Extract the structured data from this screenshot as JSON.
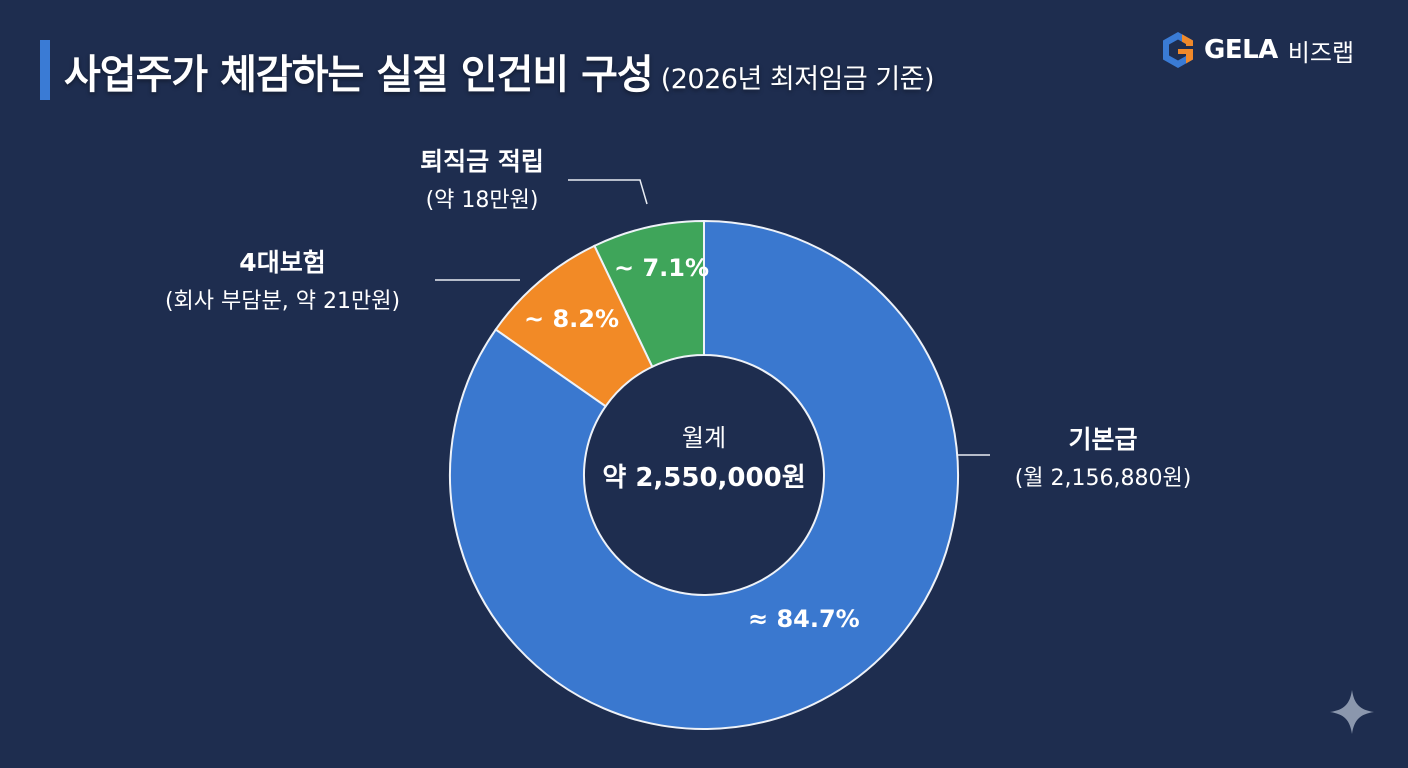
{
  "header": {
    "title": "사업주가 체감하는 실질 인건비 구성",
    "subtitle": "(2026년 최저임금 기준)"
  },
  "logo": {
    "icon": "hexagon-g-logo-icon",
    "brand": "GELA",
    "brand_ko": "비즈랩",
    "colors": {
      "blue": "#3a7bd5",
      "orange": "#f0892a"
    }
  },
  "chart_data": {
    "type": "pie",
    "subtype": "donut",
    "title": "사업주가 체감하는 실질 인건비 구성 (2026년 최저임금 기준)",
    "center_label": "월계",
    "center_value": "약 2,550,000원",
    "total_krw": 2550000,
    "categories": [
      "기본급",
      "4대보험",
      "퇴직금 적립"
    ],
    "values": [
      84.7,
      8.2,
      7.1
    ],
    "amounts_krw": [
      2156880,
      210000,
      180000
    ],
    "slices": [
      {
        "name": "기본급",
        "detail": "(월 2,156,880원)",
        "percent_label": "≈ 84.7%",
        "value": 84.7,
        "color": "#3a78cf"
      },
      {
        "name": "4대보험",
        "detail": "(회사 부담분, 약 21만원)",
        "percent_label": "~ 8.2%",
        "value": 8.2,
        "color": "#f28a26"
      },
      {
        "name": "퇴직금 적립",
        "detail": "(약 18만원)",
        "percent_label": "~ 7.1%",
        "value": 7.1,
        "color": "#3fa55a"
      }
    ],
    "legend_position": "callout labels"
  },
  "decor": {
    "sparkle_icon": "sparkle-icon"
  }
}
